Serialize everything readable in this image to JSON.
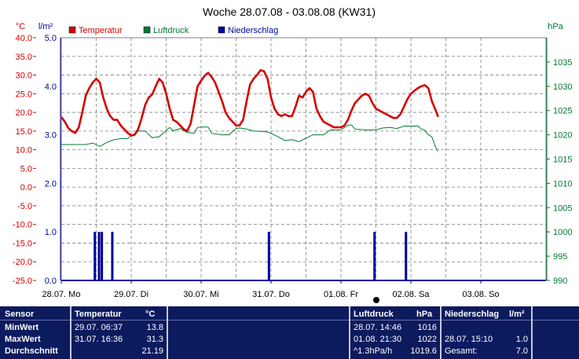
{
  "title": "Woche 28.07.08 - 03.08.08 (KW31)",
  "colors": {
    "temp": "#d40000",
    "pressure": "#007a33",
    "rain": "#0000a0",
    "grid": "#808080",
    "footer_bg": "#0c1a5e"
  },
  "chart_data": {
    "type": "line",
    "title": "Woche 28.07.08 - 03.08.08 (KW31)",
    "left_unit": "°C",
    "left2_unit": "l/m²",
    "right_unit": "hPa",
    "legend": [
      "Temperatur",
      "Luftdruck",
      "Niederschlag"
    ],
    "legend_position": "top-left",
    "grid": true,
    "x_ticks": [
      "28.07. Mo",
      "29.07. Di",
      "30.07. Mi",
      "31.07. Do",
      "01.08. Fr",
      "02.08. Sa",
      "03.08. So"
    ],
    "temp_axis": {
      "ylim": [
        -25,
        40
      ],
      "ticks": [
        "40.0",
        "35.0",
        "30.0",
        "25.0",
        "20.0",
        "15.0",
        "10.0",
        "5.0",
        "0.0",
        "-5.0",
        "-10.0",
        "-15.0",
        "-20.0",
        "-25.0"
      ]
    },
    "rain_axis": {
      "ylim": [
        0,
        5
      ],
      "ticks": [
        "5.0",
        "4.0",
        "3.0",
        "2.0",
        "1.0",
        "0.0"
      ]
    },
    "pressure_axis": {
      "ylim": [
        990,
        1040
      ],
      "ticks": [
        "1035",
        "1030",
        "1025",
        "1020",
        "1015",
        "1010",
        "1005",
        "1000",
        "995",
        "990"
      ]
    },
    "series": [
      {
        "name": "Temperatur",
        "axis": "temp",
        "points": [
          [
            0,
            18.8
          ],
          [
            0.05,
            17.5
          ],
          [
            0.1,
            15.8
          ],
          [
            0.15,
            15
          ],
          [
            0.2,
            14.5
          ],
          [
            0.25,
            16
          ],
          [
            0.3,
            20
          ],
          [
            0.35,
            24.5
          ],
          [
            0.4,
            26.5
          ],
          [
            0.45,
            28
          ],
          [
            0.5,
            29
          ],
          [
            0.55,
            28
          ],
          [
            0.6,
            24
          ],
          [
            0.65,
            21
          ],
          [
            0.7,
            19
          ],
          [
            0.75,
            18
          ],
          [
            0.8,
            18
          ],
          [
            0.85,
            16.5
          ],
          [
            0.9,
            15.5
          ],
          [
            0.95,
            14.5
          ],
          [
            1.0,
            13.8
          ],
          [
            1.05,
            14
          ],
          [
            1.1,
            15.5
          ],
          [
            1.15,
            18.5
          ],
          [
            1.2,
            22
          ],
          [
            1.25,
            24
          ],
          [
            1.3,
            24.8
          ],
          [
            1.35,
            27
          ],
          [
            1.4,
            29
          ],
          [
            1.45,
            28
          ],
          [
            1.5,
            25
          ],
          [
            1.55,
            21
          ],
          [
            1.6,
            18
          ],
          [
            1.65,
            17.5
          ],
          [
            1.7,
            16.5
          ],
          [
            1.75,
            15.5
          ],
          [
            1.8,
            15
          ],
          [
            1.85,
            17
          ],
          [
            1.9,
            22
          ],
          [
            1.95,
            27
          ],
          [
            2.0,
            28.5
          ],
          [
            2.05,
            29.8
          ],
          [
            2.1,
            30.6
          ],
          [
            2.15,
            29.5
          ],
          [
            2.2,
            28
          ],
          [
            2.25,
            25.5
          ],
          [
            2.3,
            23
          ],
          [
            2.35,
            20
          ],
          [
            2.4,
            18.5
          ],
          [
            2.45,
            17.5
          ],
          [
            2.5,
            16.5
          ],
          [
            2.55,
            16.5
          ],
          [
            2.6,
            18
          ],
          [
            2.65,
            23
          ],
          [
            2.7,
            27.5
          ],
          [
            2.75,
            29
          ],
          [
            2.8,
            30
          ],
          [
            2.85,
            31.3
          ],
          [
            2.9,
            31
          ],
          [
            2.95,
            29
          ],
          [
            3.0,
            24
          ],
          [
            3.05,
            21
          ],
          [
            3.1,
            19.5
          ],
          [
            3.15,
            19
          ],
          [
            3.2,
            19.5
          ],
          [
            3.25,
            19
          ],
          [
            3.3,
            19
          ],
          [
            3.35,
            21.5
          ],
          [
            3.4,
            24.5
          ],
          [
            3.45,
            24
          ],
          [
            3.5,
            25.5
          ],
          [
            3.55,
            26.5
          ],
          [
            3.6,
            25.5
          ],
          [
            3.65,
            21
          ],
          [
            3.7,
            19
          ],
          [
            3.75,
            17.5
          ],
          [
            3.8,
            17
          ],
          [
            3.85,
            16.5
          ],
          [
            3.9,
            16
          ],
          [
            3.95,
            16
          ],
          [
            4.0,
            16
          ],
          [
            4.05,
            16.5
          ],
          [
            4.1,
            18
          ],
          [
            4.15,
            20.5
          ],
          [
            4.2,
            22.5
          ],
          [
            4.25,
            23.5
          ],
          [
            4.3,
            24.5
          ],
          [
            4.35,
            25
          ],
          [
            4.4,
            24.5
          ],
          [
            4.45,
            22.5
          ],
          [
            4.5,
            21
          ],
          [
            4.55,
            20.5
          ],
          [
            4.6,
            20
          ],
          [
            4.65,
            19.5
          ],
          [
            4.7,
            19
          ],
          [
            4.75,
            18.5
          ],
          [
            4.8,
            18.5
          ],
          [
            4.85,
            19.5
          ],
          [
            4.9,
            21.5
          ],
          [
            4.95,
            23.5
          ],
          [
            5.0,
            25
          ],
          [
            5.05,
            25.8
          ],
          [
            5.1,
            26.5
          ],
          [
            5.15,
            27
          ],
          [
            5.2,
            27.3
          ],
          [
            5.25,
            26.5
          ],
          [
            5.3,
            23
          ],
          [
            5.35,
            20.8
          ],
          [
            5.39,
            18.8
          ]
        ]
      },
      {
        "name": "Luftdruck",
        "axis": "pressure",
        "points": [
          [
            0,
            1018
          ],
          [
            0.15,
            1018
          ],
          [
            0.35,
            1018
          ],
          [
            0.45,
            1018.3
          ],
          [
            0.55,
            1017.6
          ],
          [
            0.65,
            1018.4
          ],
          [
            0.75,
            1019
          ],
          [
            0.85,
            1019.2
          ],
          [
            0.95,
            1019.2
          ],
          [
            1.0,
            1019.9
          ],
          [
            1.05,
            1020.2
          ],
          [
            1.1,
            1020.8
          ],
          [
            1.2,
            1020.8
          ],
          [
            1.3,
            1019.4
          ],
          [
            1.4,
            1019.6
          ],
          [
            1.5,
            1020.9
          ],
          [
            1.55,
            1021.5
          ],
          [
            1.6,
            1020.8
          ],
          [
            1.7,
            1021.3
          ],
          [
            1.8,
            1020.5
          ],
          [
            1.9,
            1020.3
          ],
          [
            1.95,
            1021.5
          ],
          [
            2.0,
            1021.6
          ],
          [
            2.1,
            1021.6
          ],
          [
            2.15,
            1020.3
          ],
          [
            2.3,
            1020
          ],
          [
            2.4,
            1020
          ],
          [
            2.5,
            1021.3
          ],
          [
            2.55,
            1021.4
          ],
          [
            2.65,
            1021.2
          ],
          [
            2.75,
            1020.8
          ],
          [
            2.85,
            1020.7
          ],
          [
            2.95,
            1020.6
          ],
          [
            3.0,
            1020.3
          ],
          [
            3.1,
            1019.6
          ],
          [
            3.2,
            1018.8
          ],
          [
            3.3,
            1019
          ],
          [
            3.4,
            1018.6
          ],
          [
            3.5,
            1019.3
          ],
          [
            3.6,
            1020
          ],
          [
            3.65,
            1020
          ],
          [
            3.75,
            1020
          ],
          [
            3.85,
            1021
          ],
          [
            3.9,
            1021
          ],
          [
            4.0,
            1021
          ],
          [
            4.05,
            1021.5
          ],
          [
            4.1,
            1022
          ],
          [
            4.15,
            1022
          ],
          [
            4.2,
            1021.2
          ],
          [
            4.35,
            1021
          ],
          [
            4.5,
            1021
          ],
          [
            4.6,
            1021.4
          ],
          [
            4.7,
            1021.5
          ],
          [
            4.8,
            1021.3
          ],
          [
            4.9,
            1021.8
          ],
          [
            5.0,
            1021.8
          ],
          [
            5.1,
            1021.8
          ],
          [
            5.15,
            1021.2
          ],
          [
            5.2,
            1020.9
          ],
          [
            5.25,
            1020
          ],
          [
            5.3,
            1019.6
          ],
          [
            5.35,
            1017.6
          ],
          [
            5.39,
            1016.6
          ]
        ]
      },
      {
        "name": "Niederschlag",
        "axis": "rain",
        "type": "bar",
        "bars": [
          [
            0.48,
            1.0
          ],
          [
            0.54,
            1.0
          ],
          [
            0.58,
            1.0
          ],
          [
            0.73,
            1.0
          ],
          [
            2.97,
            1.0
          ],
          [
            4.48,
            1.0
          ],
          [
            4.93,
            1.0
          ]
        ]
      }
    ],
    "x_range": [
      0,
      5.39
    ]
  },
  "footer": {
    "sensor": {
      "header": "Sensor",
      "rows": [
        "MinWert",
        "MaxWert",
        "Durchschnitt"
      ]
    },
    "temperature": {
      "header": "Temperatur",
      "unit": "°C",
      "times": [
        "29.07.  06:37",
        "31.07.  16:36",
        ""
      ],
      "values": [
        "13.8",
        "31.3",
        "21.19"
      ]
    },
    "pressure": {
      "header": "Luftdruck",
      "unit": "hPa",
      "times": [
        "28.07.  14:46",
        "01.08.  21:30",
        "^1.3hPa/h"
      ],
      "values": [
        "1016",
        "1022",
        "1019.6"
      ]
    },
    "rain": {
      "header": "Niederschlag",
      "unit": "l/m²",
      "times": [
        "",
        "28.07.  15:10",
        "Gesamt:"
      ],
      "values": [
        "",
        "1.0",
        "7.0"
      ]
    }
  }
}
